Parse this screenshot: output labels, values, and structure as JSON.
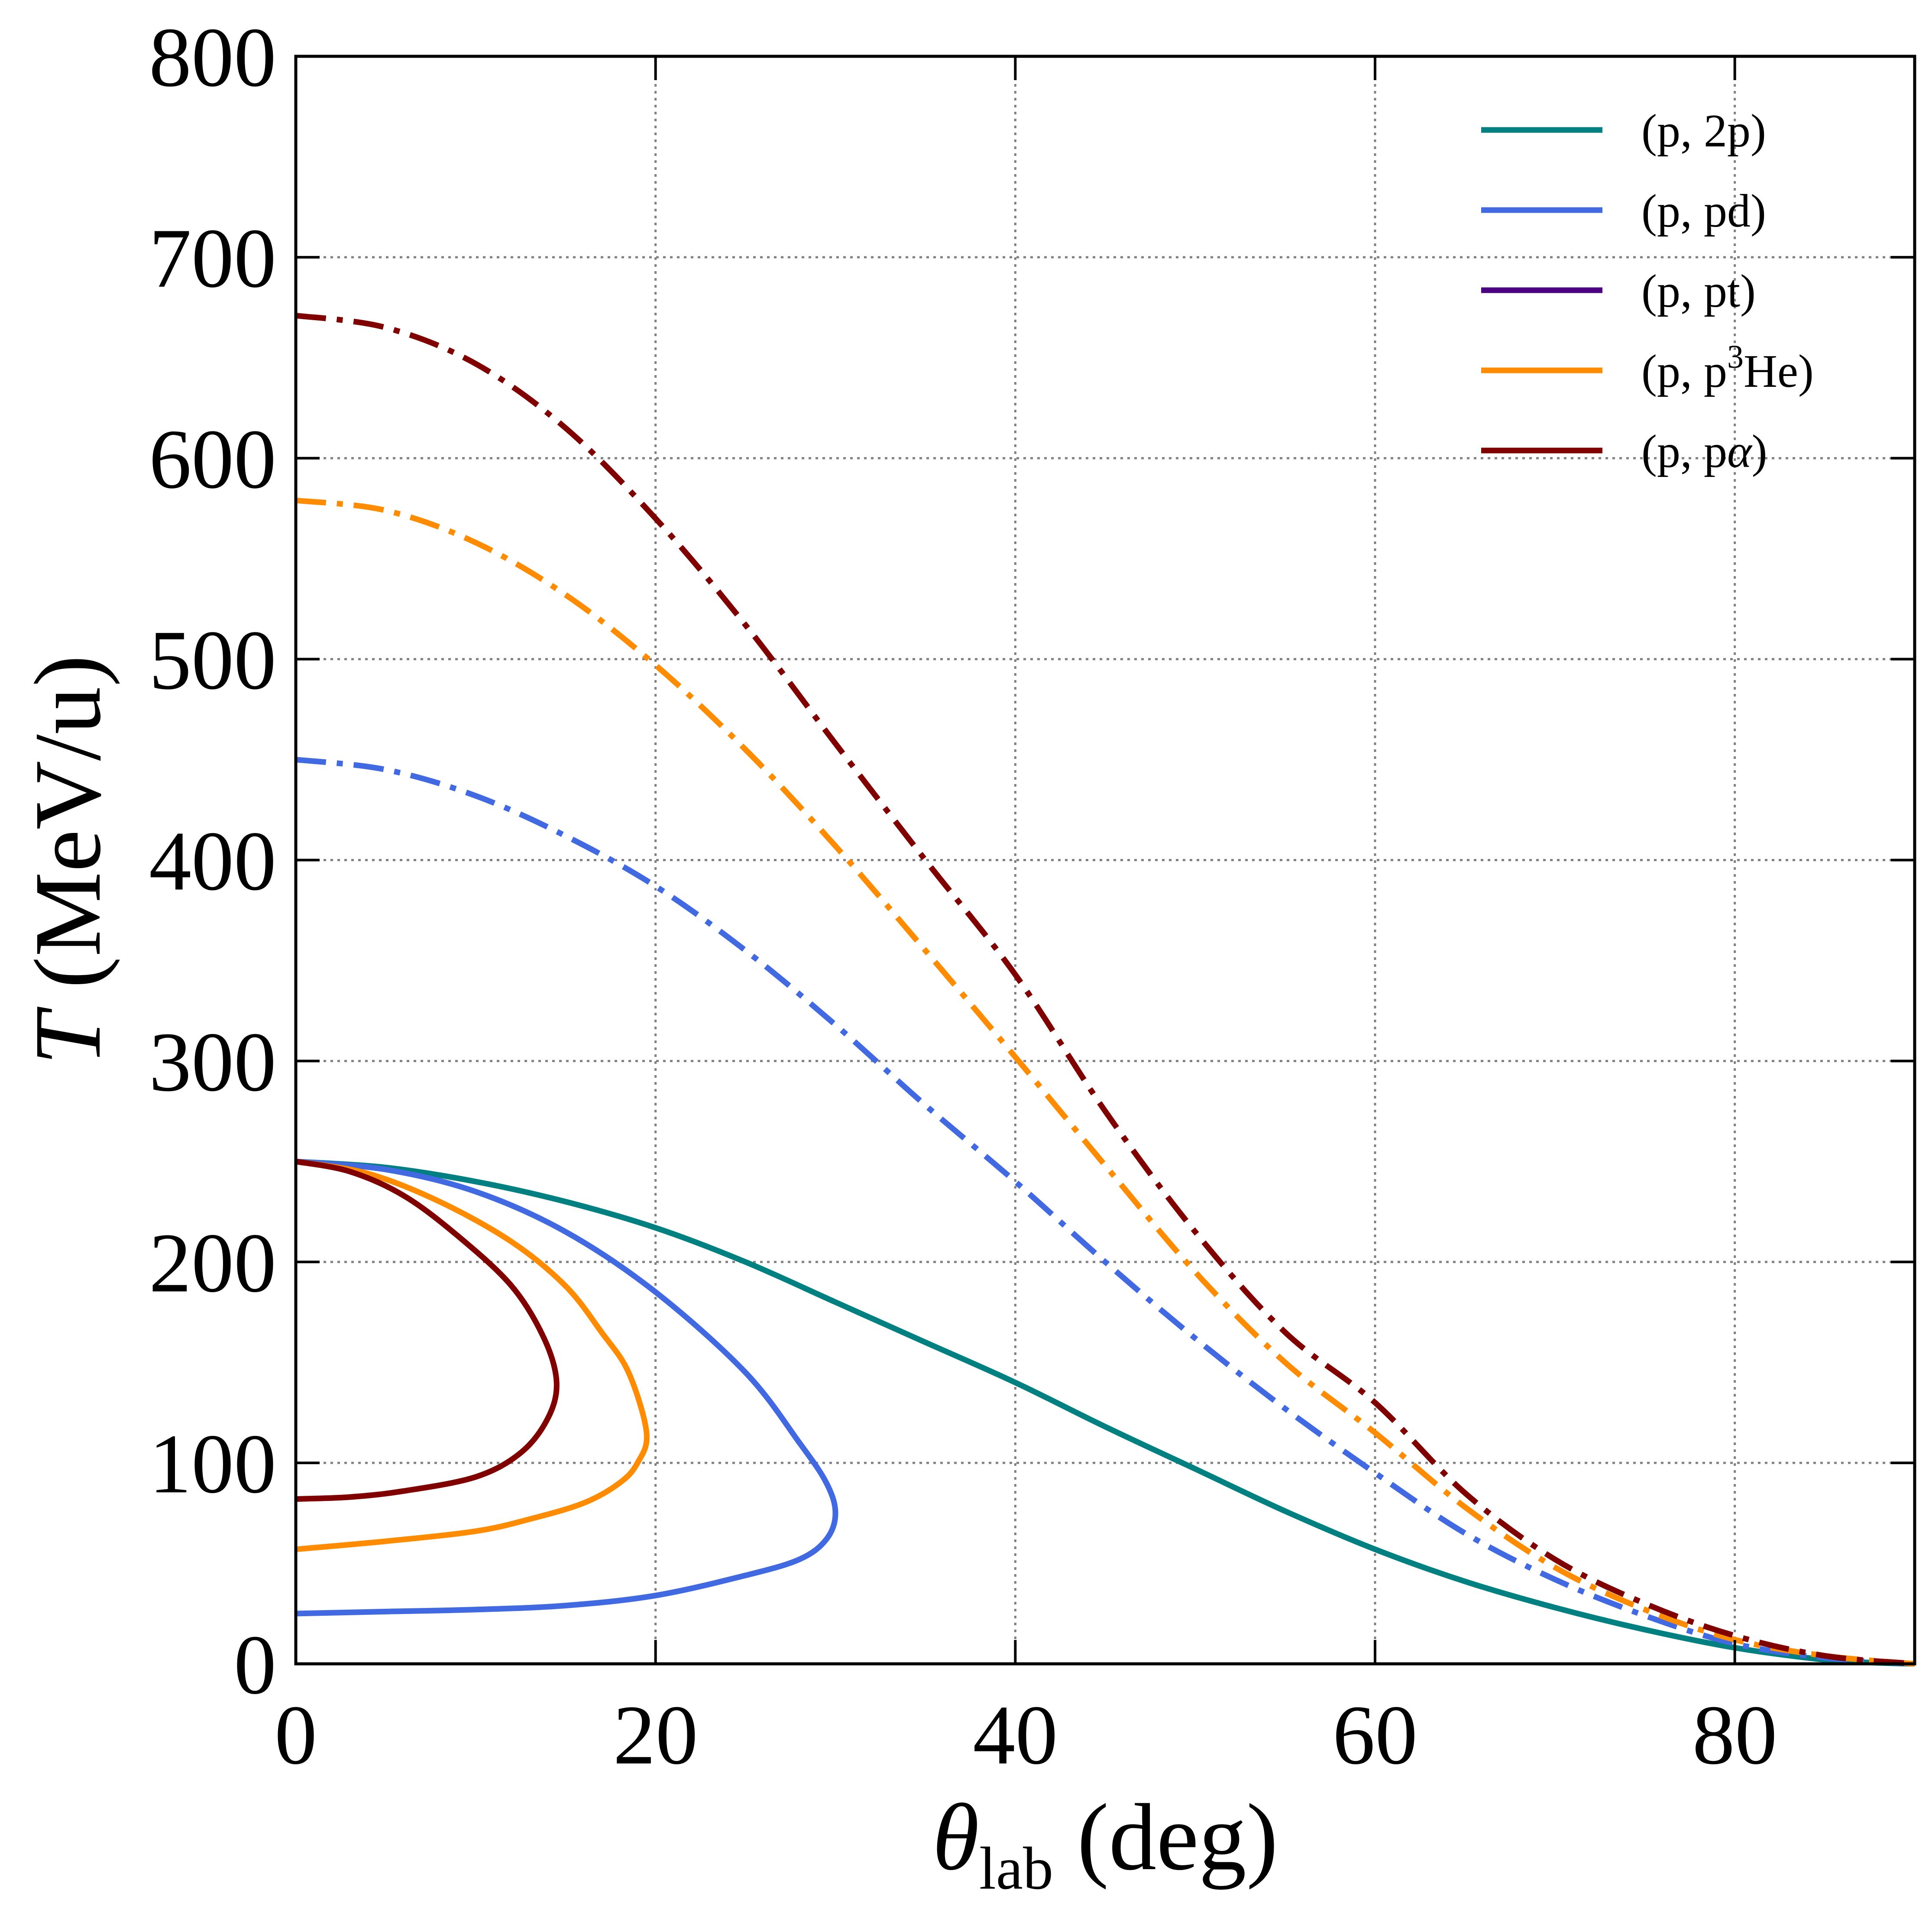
{
  "chart_data": {
    "type": "line",
    "xlabel": {
      "symbol": "θ",
      "sub": "lab",
      "unit": " (deg)"
    },
    "ylabel": {
      "symbol": "T",
      "unit": " (MeV/u)"
    },
    "xlim": [
      0,
      90
    ],
    "ylim": [
      0,
      800
    ],
    "xticks": [
      0,
      20,
      40,
      60,
      80
    ],
    "yticks": [
      0,
      100,
      200,
      300,
      400,
      500,
      600,
      700,
      800
    ],
    "grid": true,
    "legend_position": "top-right",
    "legend": [
      {
        "label": "(p, 2p)",
        "color": "#008080"
      },
      {
        "label": "(p, pd)",
        "color": "#4169E1"
      },
      {
        "label": "(p, pt)",
        "color": "#4B0082"
      },
      {
        "label": "(p, p",
        "sup": "3",
        "label_after": "He)",
        "color": "#FF8C00"
      },
      {
        "label": "(p, p",
        "greek": "α",
        "label_after": ")",
        "color": "#800000"
      }
    ],
    "series": [
      {
        "name": "(p, 2p)",
        "color": "#008080",
        "dash": "solid",
        "points": [
          [
            0,
            250
          ],
          [
            5,
            247
          ],
          [
            10,
            240
          ],
          [
            15,
            230
          ],
          [
            20,
            217
          ],
          [
            25,
            200
          ],
          [
            30,
            180
          ],
          [
            35,
            160
          ],
          [
            40,
            140
          ],
          [
            45,
            118
          ],
          [
            50,
            97
          ],
          [
            55,
            76
          ],
          [
            60,
            57
          ],
          [
            65,
            41
          ],
          [
            70,
            28
          ],
          [
            75,
            17
          ],
          [
            80,
            8
          ],
          [
            85,
            2
          ],
          [
            88,
            0.5
          ],
          [
            90,
            0
          ]
        ]
      },
      {
        "name": "(p, pd)",
        "color": "#4169E1",
        "dash": "solid",
        "points": [
          [
            0,
            250
          ],
          [
            5,
            246
          ],
          [
            10,
            235
          ],
          [
            15,
            215
          ],
          [
            20,
            185
          ],
          [
            25,
            145
          ],
          [
            28,
            110
          ],
          [
            29.5,
            90
          ],
          [
            30,
            75
          ],
          [
            29.5,
            62
          ],
          [
            28,
            52
          ],
          [
            25,
            44
          ],
          [
            20,
            34
          ],
          [
            15,
            29
          ],
          [
            10,
            27
          ],
          [
            5,
            26
          ],
          [
            0,
            25
          ]
        ]
      },
      {
        "name": "(p, p³He)",
        "color": "#FF8C00",
        "dash": "solid",
        "points": [
          [
            0,
            250
          ],
          [
            4,
            244
          ],
          [
            8,
            230
          ],
          [
            12,
            210
          ],
          [
            15,
            188
          ],
          [
            17,
            165
          ],
          [
            18.5,
            145
          ],
          [
            19.5,
            115
          ],
          [
            19,
            100
          ],
          [
            18,
            90
          ],
          [
            16,
            80
          ],
          [
            13,
            72
          ],
          [
            10,
            66
          ],
          [
            5,
            61
          ],
          [
            0,
            57
          ]
        ]
      },
      {
        "name": "(p, pα)",
        "color": "#800000",
        "dash": "solid",
        "points": [
          [
            0,
            250
          ],
          [
            3,
            245
          ],
          [
            6,
            233
          ],
          [
            9,
            213
          ],
          [
            12,
            188
          ],
          [
            13.8,
            162
          ],
          [
            14.5,
            140
          ],
          [
            14,
            122
          ],
          [
            12.5,
            105
          ],
          [
            10,
            93
          ],
          [
            6,
            86
          ],
          [
            3,
            83
          ],
          [
            0,
            82
          ]
        ]
      },
      {
        "name": "(p, pd) dash-dot",
        "color": "#4169E1",
        "dash": "dashdot",
        "points": [
          [
            0,
            450
          ],
          [
            5,
            445
          ],
          [
            10,
            432
          ],
          [
            15,
            412
          ],
          [
            20,
            387
          ],
          [
            25,
            355
          ],
          [
            30,
            318
          ],
          [
            35,
            278
          ],
          [
            40,
            240
          ],
          [
            45,
            200
          ],
          [
            50,
            162
          ],
          [
            55,
            127
          ],
          [
            60,
            95
          ],
          [
            65,
            65
          ],
          [
            70,
            42
          ],
          [
            75,
            24
          ],
          [
            80,
            10
          ],
          [
            85,
            3
          ],
          [
            90,
            0
          ]
        ]
      },
      {
        "name": "(p, p³He) dash-dot",
        "color": "#FF8C00",
        "dash": "dashdot",
        "points": [
          [
            0,
            579
          ],
          [
            5,
            574
          ],
          [
            10,
            558
          ],
          [
            15,
            532
          ],
          [
            20,
            497
          ],
          [
            25,
            455
          ],
          [
            30,
            407
          ],
          [
            35,
            355
          ],
          [
            40,
            302
          ],
          [
            45,
            248
          ],
          [
            50,
            195
          ],
          [
            55,
            150
          ],
          [
            60,
            115
          ],
          [
            65,
            78
          ],
          [
            70,
            48
          ],
          [
            75,
            27
          ],
          [
            80,
            12
          ],
          [
            85,
            4
          ],
          [
            90,
            0
          ]
        ]
      },
      {
        "name": "(p, pα) dash-dot",
        "color": "#800000",
        "dash": "dashdot",
        "points": [
          [
            0,
            671
          ],
          [
            5,
            665
          ],
          [
            10,
            647
          ],
          [
            15,
            615
          ],
          [
            20,
            570
          ],
          [
            25,
            517
          ],
          [
            30,
            458
          ],
          [
            35,
            400
          ],
          [
            40,
            343
          ],
          [
            45,
            275
          ],
          [
            50,
            215
          ],
          [
            55,
            165
          ],
          [
            60,
            130
          ],
          [
            65,
            85
          ],
          [
            70,
            52
          ],
          [
            75,
            30
          ],
          [
            80,
            14
          ],
          [
            85,
            4
          ],
          [
            90,
            0
          ]
        ]
      }
    ]
  }
}
